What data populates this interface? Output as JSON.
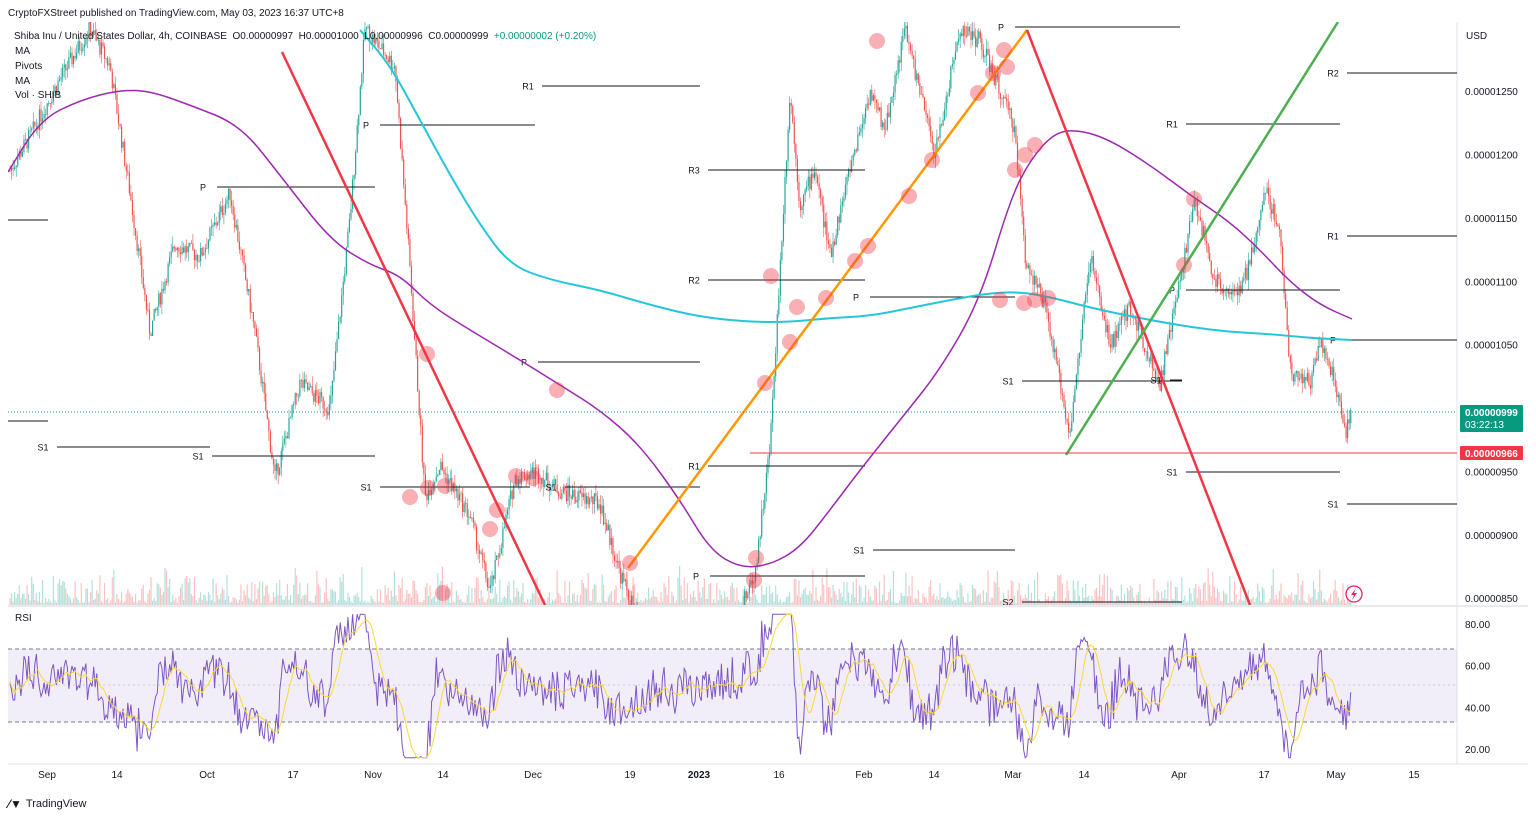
{
  "publisher": "CryptoFXStreet published on TradingView.com, May 03, 2023 16:37 UTC+8",
  "symbol": {
    "name": "Shiba Inu / United States Dollar, 4h, COINBASE",
    "open": "O0.00000997",
    "high": "H0.00001000",
    "low": "L0.00000996",
    "close": "C0.00000999",
    "change": "+0.00000002 (+0.20%)"
  },
  "indicators": [
    "MA",
    "Pivots",
    "MA",
    "Vol · SHIB"
  ],
  "currency": "USD",
  "rsi_label": "RSI",
  "footer": "TradingView",
  "colors": {
    "up": "#26a69a",
    "down": "#ef5350",
    "ma_purple": "#9c27b0",
    "ma_cyan": "#26c6da",
    "trend_red": "#f23645",
    "trend_orange": "#ff9800",
    "trend_green": "#4caf50",
    "rsi": "#7e57c2",
    "rsi_ma": "#fdd835",
    "last_price": "#089981",
    "support": "#f23645"
  },
  "chart_data": {
    "type": "candlestick",
    "title": "Shiba Inu / United States Dollar, 4h, COINBASE",
    "x_ticks": [
      "Sep",
      "14",
      "Oct",
      "17",
      "Nov",
      "14",
      "Dec",
      "19",
      "2023",
      "16",
      "Feb",
      "14",
      "Mar",
      "14",
      "Apr",
      "17",
      "May",
      "15"
    ],
    "y_ticks": [
      "0.00001250",
      "0.00001200",
      "0.00001150",
      "0.00001100",
      "0.00001050",
      "0.00000950",
      "0.00000900",
      "0.00000850"
    ],
    "ylim": [
      8.45e-06,
      1.305e-05
    ],
    "last_price": {
      "label": "0.00000999",
      "value": 9.99e-06,
      "countdown": "03:22:13"
    },
    "support_level": {
      "label": "0.00000966",
      "value": 9.66e-06
    },
    "pivot_labels": [
      "R1",
      "P",
      "P",
      "S1",
      "S1",
      "S1",
      "S1",
      "P",
      "R3",
      "R2",
      "R1",
      "P",
      "S1",
      "P",
      "S1",
      "S2",
      "P",
      "S1",
      "R1",
      "P",
      "S1",
      "R2",
      "R1",
      "P",
      "S1"
    ],
    "rsi": {
      "y_ticks": [
        "80.00",
        "60.00",
        "40.00",
        "20.00"
      ],
      "ylim": [
        13,
        87
      ],
      "band": [
        30,
        70
      ]
    }
  }
}
